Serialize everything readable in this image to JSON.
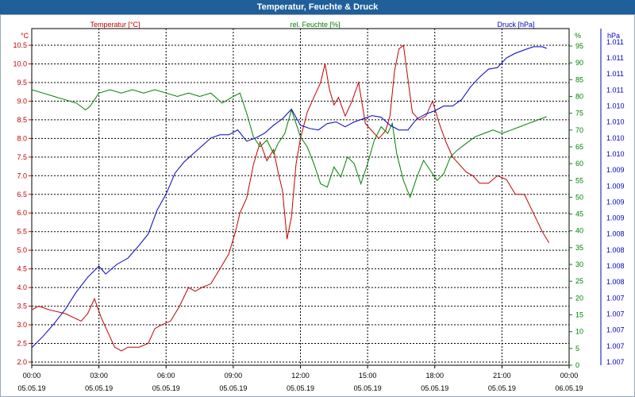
{
  "window": {
    "title": "Temperatur, Feuchte & Druck"
  },
  "chart_data": {
    "type": "line",
    "title": "Temperatur, Feuchte & Druck",
    "axes": {
      "temperature": {
        "label": "Temperatur [°C]",
        "unit": "°C",
        "color": "#c00000",
        "range": [
          2.0,
          10.5
        ],
        "ticks": [
          "2.0",
          "2.5",
          "3.0",
          "3.5",
          "4.0",
          "4.5",
          "5.0",
          "5.5",
          "6.0",
          "6.5",
          "7.0",
          "7.5",
          "8.0",
          "8.5",
          "9.0",
          "9.5",
          "10.0",
          "10.5"
        ]
      },
      "humidity": {
        "label": "rel. Feuchte [%]",
        "unit": "%",
        "color": "#008000",
        "range": [
          0,
          95
        ],
        "ticks": [
          "0",
          "5",
          "10",
          "15",
          "20",
          "25",
          "30",
          "35",
          "40",
          "45",
          "50",
          "55",
          "60",
          "65",
          "70",
          "75",
          "80",
          "85",
          "90",
          "95"
        ]
      },
      "pressure": {
        "label": "Druck [hPa]",
        "unit": "hPa",
        "color": "#0000c0",
        "ticks": [
          "1.007",
          "1.007",
          "1.007",
          "1.007",
          "1.007",
          "1.008",
          "1.008",
          "1.008",
          "1.008",
          "1.009",
          "1.009",
          "1.009",
          "1.009",
          "1.010",
          "1.010",
          "1.010",
          "1.010",
          "1.011",
          "1.011",
          "1.011",
          "1.011"
        ]
      }
    },
    "x_ticks": [
      {
        "time": "00:00",
        "date": "05.05.19"
      },
      {
        "time": "03:00",
        "date": "05.05.19"
      },
      {
        "time": "06:00",
        "date": "05.05.19"
      },
      {
        "time": "09:00",
        "date": "05.05.19"
      },
      {
        "time": "12:00",
        "date": "05.05.19"
      },
      {
        "time": "15:00",
        "date": "05.05.19"
      },
      {
        "time": "18:00",
        "date": "05.05.19"
      },
      {
        "time": "21:00",
        "date": "05.05.19"
      },
      {
        "time": "00:00",
        "date": "06.05.19"
      }
    ],
    "x_range_hours": [
      0,
      24
    ],
    "series": [
      {
        "name": "Temperatur [°C]",
        "axis": "temperature",
        "color": "#c00000",
        "points": [
          [
            0,
            3.4
          ],
          [
            0.3,
            3.5
          ],
          [
            0.8,
            3.4
          ],
          [
            1.5,
            3.3
          ],
          [
            2.2,
            3.1
          ],
          [
            2.5,
            3.3
          ],
          [
            2.8,
            3.7
          ],
          [
            3.1,
            3.2
          ],
          [
            3.4,
            2.8
          ],
          [
            3.7,
            2.4
          ],
          [
            4.0,
            2.3
          ],
          [
            4.3,
            2.4
          ],
          [
            4.8,
            2.4
          ],
          [
            5.2,
            2.5
          ],
          [
            5.5,
            2.9
          ],
          [
            5.8,
            3.0
          ],
          [
            6.2,
            3.1
          ],
          [
            6.6,
            3.5
          ],
          [
            7.0,
            4.0
          ],
          [
            7.3,
            3.9
          ],
          [
            7.6,
            4.0
          ],
          [
            8.0,
            4.1
          ],
          [
            8.5,
            4.6
          ],
          [
            8.8,
            4.9
          ],
          [
            9.1,
            5.5
          ],
          [
            9.3,
            6.0
          ],
          [
            9.6,
            6.4
          ],
          [
            9.9,
            7.3
          ],
          [
            10.2,
            7.9
          ],
          [
            10.5,
            7.4
          ],
          [
            10.8,
            7.7
          ],
          [
            11.0,
            7.1
          ],
          [
            11.2,
            6.6
          ],
          [
            11.4,
            5.3
          ],
          [
            11.6,
            5.9
          ],
          [
            11.8,
            7.3
          ],
          [
            12.0,
            8.0
          ],
          [
            12.3,
            8.7
          ],
          [
            12.6,
            9.1
          ],
          [
            12.9,
            9.5
          ],
          [
            13.1,
            10.0
          ],
          [
            13.3,
            9.3
          ],
          [
            13.5,
            8.9
          ],
          [
            13.7,
            9.1
          ],
          [
            14.0,
            8.6
          ],
          [
            14.3,
            9.0
          ],
          [
            14.6,
            9.5
          ],
          [
            14.9,
            8.4
          ],
          [
            15.2,
            8.2
          ],
          [
            15.5,
            8.0
          ],
          [
            15.8,
            8.2
          ],
          [
            16.0,
            8.6
          ],
          [
            16.2,
            9.8
          ],
          [
            16.4,
            10.4
          ],
          [
            16.6,
            10.5
          ],
          [
            16.8,
            9.6
          ],
          [
            17.0,
            8.7
          ],
          [
            17.3,
            8.5
          ],
          [
            17.6,
            8.6
          ],
          [
            17.9,
            9.0
          ],
          [
            18.2,
            8.4
          ],
          [
            18.5,
            7.9
          ],
          [
            18.8,
            7.5
          ],
          [
            19.1,
            7.3
          ],
          [
            19.4,
            7.1
          ],
          [
            19.7,
            7.0
          ],
          [
            20.0,
            6.8
          ],
          [
            20.4,
            6.8
          ],
          [
            20.8,
            7.0
          ],
          [
            21.2,
            6.9
          ],
          [
            21.6,
            6.5
          ],
          [
            22.0,
            6.5
          ],
          [
            22.4,
            6.0
          ],
          [
            22.8,
            5.5
          ],
          [
            23.1,
            5.2
          ]
        ]
      },
      {
        "name": "rel. Feuchte [%]",
        "axis": "humidity",
        "color": "#008000",
        "points": [
          [
            0,
            82
          ],
          [
            0.5,
            81
          ],
          [
            1.0,
            80
          ],
          [
            1.5,
            79
          ],
          [
            2.0,
            78
          ],
          [
            2.4,
            76
          ],
          [
            2.6,
            77
          ],
          [
            3.0,
            81
          ],
          [
            3.5,
            82
          ],
          [
            4.0,
            81
          ],
          [
            4.5,
            82
          ],
          [
            5.0,
            81
          ],
          [
            5.5,
            82
          ],
          [
            6.0,
            81
          ],
          [
            6.5,
            80
          ],
          [
            7.0,
            81
          ],
          [
            7.5,
            80
          ],
          [
            8.0,
            81
          ],
          [
            8.5,
            78
          ],
          [
            9.0,
            80
          ],
          [
            9.3,
            81
          ],
          [
            9.6,
            75
          ],
          [
            9.9,
            68
          ],
          [
            10.2,
            65
          ],
          [
            10.5,
            67
          ],
          [
            10.8,
            63
          ],
          [
            11.0,
            66
          ],
          [
            11.3,
            69
          ],
          [
            11.6,
            76
          ],
          [
            11.8,
            72
          ],
          [
            12.0,
            68
          ],
          [
            12.3,
            65
          ],
          [
            12.6,
            60
          ],
          [
            12.9,
            54
          ],
          [
            13.2,
            53
          ],
          [
            13.5,
            59
          ],
          [
            13.8,
            56
          ],
          [
            14.1,
            62
          ],
          [
            14.4,
            60
          ],
          [
            14.7,
            54
          ],
          [
            15.0,
            60
          ],
          [
            15.3,
            67
          ],
          [
            15.6,
            71
          ],
          [
            15.9,
            69
          ],
          [
            16.1,
            72
          ],
          [
            16.3,
            63
          ],
          [
            16.6,
            55
          ],
          [
            16.9,
            50
          ],
          [
            17.2,
            56
          ],
          [
            17.5,
            61
          ],
          [
            17.8,
            58
          ],
          [
            18.1,
            55
          ],
          [
            18.4,
            57
          ],
          [
            18.7,
            62
          ],
          [
            19.0,
            64
          ],
          [
            19.4,
            66
          ],
          [
            19.8,
            68
          ],
          [
            20.2,
            69
          ],
          [
            20.6,
            70
          ],
          [
            21.0,
            69
          ],
          [
            21.4,
            70
          ],
          [
            21.8,
            71
          ],
          [
            22.2,
            72
          ],
          [
            22.6,
            73
          ],
          [
            23.0,
            74
          ]
        ]
      },
      {
        "name": "Druck [hPa]",
        "axis": "pressure",
        "color": "#0000c0",
        "note": "pressure values given in axis-tick units (0 = lowest grid line, 20 = highest)",
        "points": [
          [
            0,
            0.9
          ],
          [
            0.5,
            1.6
          ],
          [
            1.0,
            2.4
          ],
          [
            1.5,
            3.3
          ],
          [
            2.0,
            4.4
          ],
          [
            2.5,
            5.3
          ],
          [
            3.0,
            6.0
          ],
          [
            3.3,
            5.5
          ],
          [
            3.8,
            6.1
          ],
          [
            4.3,
            6.5
          ],
          [
            4.8,
            7.3
          ],
          [
            5.2,
            8.0
          ],
          [
            5.6,
            9.5
          ],
          [
            6.0,
            10.5
          ],
          [
            6.4,
            11.8
          ],
          [
            6.8,
            12.5
          ],
          [
            7.2,
            13.0
          ],
          [
            7.6,
            13.5
          ],
          [
            8.0,
            14.0
          ],
          [
            8.4,
            14.2
          ],
          [
            8.8,
            14.2
          ],
          [
            9.2,
            14.5
          ],
          [
            9.6,
            13.8
          ],
          [
            10.0,
            14.0
          ],
          [
            10.4,
            14.3
          ],
          [
            10.8,
            14.8
          ],
          [
            11.2,
            15.2
          ],
          [
            11.6,
            15.8
          ],
          [
            12.0,
            14.8
          ],
          [
            12.4,
            14.6
          ],
          [
            12.8,
            14.5
          ],
          [
            13.2,
            14.9
          ],
          [
            13.6,
            15.0
          ],
          [
            14.0,
            14.7
          ],
          [
            14.4,
            15.0
          ],
          [
            14.8,
            15.2
          ],
          [
            15.2,
            15.4
          ],
          [
            15.6,
            15.3
          ],
          [
            16.0,
            14.8
          ],
          [
            16.4,
            14.5
          ],
          [
            16.8,
            14.5
          ],
          [
            17.2,
            15.2
          ],
          [
            17.6,
            15.5
          ],
          [
            18.0,
            15.7
          ],
          [
            18.4,
            16.0
          ],
          [
            18.8,
            16.0
          ],
          [
            19.2,
            16.4
          ],
          [
            19.6,
            17.2
          ],
          [
            20.0,
            17.8
          ],
          [
            20.4,
            18.3
          ],
          [
            20.8,
            18.4
          ],
          [
            21.2,
            19.0
          ],
          [
            21.6,
            19.3
          ],
          [
            22.0,
            19.5
          ],
          [
            22.4,
            19.7
          ],
          [
            22.8,
            19.7
          ],
          [
            23.0,
            19.6
          ]
        ]
      }
    ]
  }
}
